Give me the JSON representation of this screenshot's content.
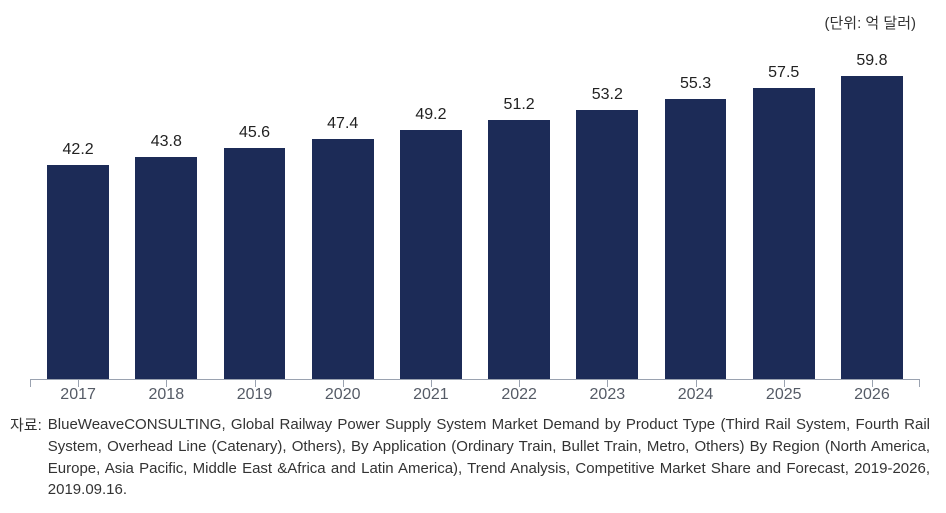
{
  "unit_label": "(단위: 억 달러)",
  "unit_label_fontsize": 15,
  "chart": {
    "type": "bar",
    "categories": [
      "2017",
      "2018",
      "2019",
      "2020",
      "2021",
      "2022",
      "2023",
      "2024",
      "2025",
      "2026"
    ],
    "values": [
      42.2,
      43.8,
      45.6,
      47.4,
      49.2,
      51.2,
      53.2,
      55.3,
      57.5,
      59.8
    ],
    "bar_color": "#1c2b57",
    "value_label_color": "#222222",
    "value_label_fontsize": 16,
    "x_label_color": "#555b66",
    "x_label_fontsize": 16,
    "background_color": "#ffffff",
    "axis_color": "#9aa2b0",
    "ylim": [
      0,
      65
    ],
    "bar_width": 0.7,
    "show_y_axis": false,
    "show_x_ticks": true,
    "show_gridlines": false
  },
  "source": {
    "prefix": "자료:",
    "text": "BlueWeaveCONSULTING, Global Railway Power Supply System Market Demand by Product Type (Third Rail System, Fourth Rail System, Overhead Line (Catenary), Others), By Application (Ordinary Train, Bullet Train, Metro, Others) By Region (North America, Europe, Asia Pacific, Middle East &Africa and Latin America), Trend Analysis, Competitive Market Share and Forecast, 2019-2026, 2019.09.16.",
    "fontsize": 15,
    "color": "#333333"
  }
}
